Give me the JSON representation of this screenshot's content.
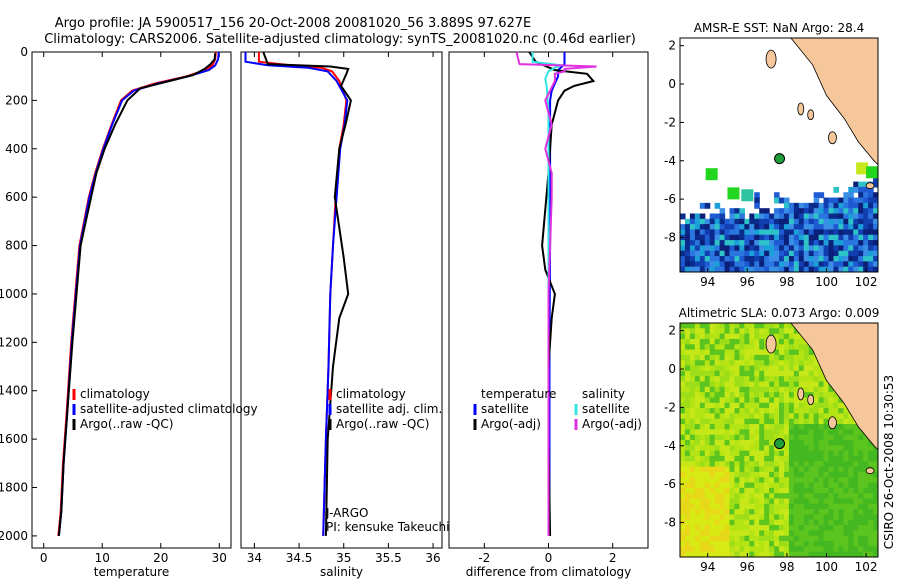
{
  "header": {
    "line1": "Argo profile: JA 5900517_156 20-Oct-2008 20081020_56 3.889S 97.627E",
    "line2": "Climatology: CARS2006. Satellite-adjusted climatology: synTS_20081020.nc (0.46d earlier)"
  },
  "footer_stamp": "CSIRO 26-Oct-2008 10:30:53",
  "colors": {
    "climatology": "#ff0000",
    "satellite": "#0000ff",
    "argo": "#000000",
    "satellite_salinity": "#33e6e6",
    "argo_salinity_diff": "#e030e0",
    "land": "#f6c79b",
    "map_background": "#ffffff",
    "float_marker": "#1e9e3a"
  },
  "chart_data": [
    {
      "id": "temperature",
      "type": "line",
      "xlabel": "temperature",
      "ylabel": "",
      "xlim": [
        -2,
        32
      ],
      "ylim": [
        2050,
        0
      ],
      "xticks": [
        0,
        10,
        20,
        30
      ],
      "yticks": [
        0,
        200,
        400,
        600,
        800,
        1000,
        1200,
        1400,
        1600,
        1800,
        2000
      ],
      "legend": [
        "climatology",
        "satellite-adjusted climatology",
        "Argo(..raw -QC)"
      ],
      "legend_placement": "lower-left",
      "series": [
        {
          "name": "climatology",
          "color": "#ff0000",
          "x": [
            29.4,
            29.3,
            28.8,
            27.6,
            24.5,
            19,
            15.1,
            13.2,
            11.6,
            10.1,
            8.8,
            7.7,
            6.9,
            6.1,
            5.4,
            4.7,
            3.9,
            3.3,
            2.9,
            2.5
          ],
          "y": [
            0,
            30,
            55,
            75,
            100,
            130,
            160,
            200,
            300,
            400,
            500,
            600,
            700,
            800,
            1000,
            1200,
            1500,
            1700,
            1900,
            2000
          ]
        },
        {
          "name": "satellite-adjusted climatology",
          "color": "#0000ff",
          "x": [
            29.9,
            29.8,
            29.3,
            28.2,
            24.8,
            19.5,
            15.4,
            13.4,
            11.7,
            10.2,
            8.9,
            7.8,
            7.0,
            6.2,
            5.5,
            4.8,
            4.0,
            3.4,
            3.0,
            2.6
          ],
          "y": [
            0,
            30,
            55,
            75,
            100,
            130,
            160,
            200,
            300,
            400,
            500,
            600,
            700,
            800,
            1000,
            1200,
            1500,
            1700,
            1900,
            2000
          ]
        },
        {
          "name": "Argo(..raw -QC)",
          "color": "#000000",
          "x": [
            29.3,
            29.2,
            28.5,
            27.5,
            25.5,
            21.5,
            16.5,
            14.3,
            12.2,
            10.4,
            9.0,
            8.1,
            7.2,
            6.3,
            5.6,
            4.9,
            4.0,
            3.4,
            3.0,
            2.6
          ],
          "y": [
            5,
            30,
            50,
            70,
            95,
            120,
            150,
            200,
            300,
            400,
            500,
            600,
            700,
            800,
            1000,
            1200,
            1500,
            1700,
            1900,
            2000
          ]
        }
      ]
    },
    {
      "id": "salinity",
      "type": "line",
      "xlabel": "salinity",
      "ylabel": "",
      "xlim": [
        33.85,
        36.1
      ],
      "ylim": [
        2050,
        0
      ],
      "xticks": [
        34,
        34.5,
        35,
        35.5,
        36
      ],
      "legend": [
        "climatology",
        "satellite adj. clim.",
        "Argo(..raw -QC)"
      ],
      "legend_placement": "lower-right",
      "annotations": [
        "J-ARGO",
        "PI: kensuke Takeuchi"
      ],
      "series": [
        {
          "name": "climatology",
          "color": "#ff0000",
          "x": [
            34.05,
            34.05,
            34.4,
            34.75,
            34.87,
            34.95,
            35.03,
            35.0,
            34.95,
            34.91,
            34.88,
            34.85,
            34.83,
            34.8,
            34.77
          ],
          "y": [
            0,
            40,
            55,
            65,
            80,
            120,
            200,
            300,
            400,
            600,
            800,
            1000,
            1300,
            1600,
            2000
          ]
        },
        {
          "name": "satellite adj. clim.",
          "color": "#0000ff",
          "x": [
            33.9,
            33.9,
            34.15,
            34.6,
            34.82,
            34.92,
            35.04,
            35.01,
            34.96,
            34.92,
            34.88,
            34.85,
            34.83,
            34.8,
            34.77
          ],
          "y": [
            0,
            40,
            55,
            65,
            80,
            120,
            200,
            300,
            400,
            600,
            800,
            1000,
            1300,
            1600,
            2000
          ]
        },
        {
          "name": "Argo(..raw -QC)",
          "color": "#000000",
          "x": [
            34.1,
            34.15,
            34.85,
            35.05,
            35.03,
            34.97,
            35.08,
            35.02,
            34.95,
            34.9,
            35.0,
            35.05,
            34.95,
            34.88,
            34.82,
            34.8
          ],
          "y": [
            0,
            50,
            60,
            70,
            90,
            140,
            200,
            300,
            400,
            600,
            850,
            1000,
            1100,
            1300,
            1600,
            2000
          ]
        }
      ]
    },
    {
      "id": "difference",
      "type": "line",
      "xlabel": "difference from climatology",
      "ylabel": "",
      "xlim": [
        -3.1,
        3.1
      ],
      "ylim": [
        2050,
        0
      ],
      "xticks": [
        -2,
        0,
        2
      ],
      "legend": [
        "temperature",
        "satellite",
        "Argo(-adj)",
        "salinity",
        "satellite",
        "Argo(-adj)"
      ],
      "legend_placement": "lower",
      "series": [
        {
          "name": "satellite",
          "color": "#0000ff",
          "x": [
            0.5,
            0.5,
            0.3,
            0.3,
            0.2,
            0.1,
            0.05,
            0.05,
            0.05,
            0.03,
            0.03,
            0.03
          ],
          "y": [
            0,
            50,
            75,
            100,
            130,
            160,
            200,
            400,
            800,
            1200,
            1600,
            2000
          ]
        },
        {
          "name": "Argo(-adj)",
          "color": "#000000",
          "x": [
            -0.6,
            -0.4,
            0.2,
            1.2,
            1.4,
            0.8,
            0.5,
            0.3,
            0.1,
            0,
            -0.2,
            -0.1,
            0.2,
            0.1,
            0,
            0,
            0.05
          ],
          "y": [
            0,
            40,
            75,
            90,
            120,
            140,
            160,
            200,
            300,
            500,
            800,
            900,
            1000,
            1100,
            1300,
            1600,
            2000
          ]
        },
        {
          "name": "satellite",
          "color": "#33e6e6",
          "x": [
            -0.5,
            -0.5,
            0.4,
            0.2,
            0,
            -0.1,
            -0.05,
            0,
            0,
            0,
            0
          ],
          "y": [
            0,
            40,
            55,
            65,
            80,
            110,
            150,
            250,
            500,
            1000,
            2000
          ]
        },
        {
          "name": "Argo(-adj)",
          "color": "#e030e0",
          "x": [
            -1.0,
            -0.9,
            1.5,
            0.5,
            0.5,
            0.2,
            0.2,
            -0.1,
            0.1,
            -0.1,
            0.1,
            0.1,
            0,
            0,
            0
          ],
          "y": [
            0,
            50,
            60,
            70,
            80,
            90,
            120,
            200,
            300,
            400,
            500,
            600,
            1000,
            1500,
            2000
          ]
        }
      ]
    },
    {
      "id": "sst_map",
      "type": "heatmap",
      "title": "AMSR-E SST: NaN Argo: 28.4",
      "xlim": [
        92.6,
        102.6
      ],
      "ylim": [
        -9.8,
        2.4
      ],
      "xticks": [
        94,
        96,
        98,
        100,
        102
      ],
      "yticks": [
        2,
        0,
        -2,
        -4,
        -6,
        -8
      ],
      "float_marker": {
        "lon": 97.627,
        "lat": -3.889
      }
    },
    {
      "id": "sla_map",
      "type": "heatmap",
      "title": "Altimetric SLA: 0.073 Argo: 0.009",
      "xlim": [
        92.6,
        102.6
      ],
      "ylim": [
        -9.8,
        2.4
      ],
      "xticks": [
        94,
        96,
        98,
        100,
        102
      ],
      "yticks": [
        2,
        0,
        -2,
        -4,
        -6,
        -8
      ],
      "float_marker": {
        "lon": 97.627,
        "lat": -3.889
      }
    }
  ]
}
